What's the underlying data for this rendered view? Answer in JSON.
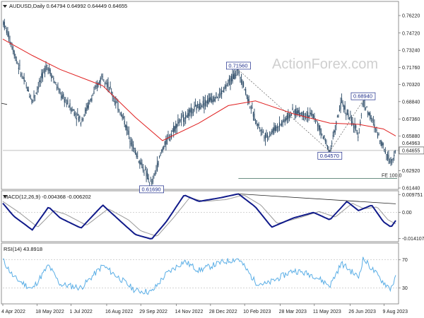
{
  "header": {
    "symbol_line": "AUDUSD,Daily  0.64794 0.64992 0.64449 0.64655"
  },
  "watermark": "ActionForex.com",
  "chart_data": [
    {
      "type": "candlestick",
      "name": "AUDUSD,Daily",
      "open": 0.64794,
      "high": 0.64992,
      "low": 0.64449,
      "close": 0.64655,
      "y_ticks": [
        "0.76220",
        "0.74720",
        "0.73240",
        "0.71760",
        "0.70320",
        "0.68840",
        "0.67360",
        "0.65880",
        "0.64655",
        "0.62920",
        "0.61440"
      ],
      "ylim": [
        0.6144,
        0.7622
      ],
      "price_path": [
        [
          "2022-04-04",
          0.758
        ],
        [
          "2022-04-14",
          0.74
        ],
        [
          "2022-04-28",
          0.712
        ],
        [
          "2022-05-12",
          0.689
        ],
        [
          "2022-05-31",
          0.72
        ],
        [
          "2022-06-17",
          0.695
        ],
        [
          "2022-07-14",
          0.672
        ],
        [
          "2022-08-11",
          0.712
        ],
        [
          "2022-09-06",
          0.675
        ],
        [
          "2022-09-22",
          0.645
        ],
        [
          "2022-10-13",
          0.617
        ],
        [
          "2022-10-27",
          0.648
        ],
        [
          "2022-11-15",
          0.67
        ],
        [
          "2022-12-13",
          0.685
        ],
        [
          "2023-01-10",
          0.695
        ],
        [
          "2023-02-02",
          0.7156
        ],
        [
          "2023-02-24",
          0.672
        ],
        [
          "2023-03-10",
          0.658
        ],
        [
          "2023-04-14",
          0.68
        ],
        [
          "2023-05-10",
          0.676
        ],
        [
          "2023-05-31",
          0.646
        ],
        [
          "2023-06-15",
          0.688
        ],
        [
          "2023-07-07",
          0.66
        ],
        [
          "2023-07-13",
          0.6894
        ],
        [
          "2023-08-08",
          0.65
        ],
        [
          "2023-08-17",
          0.637
        ],
        [
          "2023-08-24",
          0.6466
        ]
      ],
      "sma_path": [
        [
          "2022-04-04",
          0.742
        ],
        [
          "2022-05-12",
          0.728
        ],
        [
          "2022-06-17",
          0.716
        ],
        [
          "2022-08-11",
          0.702
        ],
        [
          "2022-09-22",
          0.675
        ],
        [
          "2022-10-27",
          0.655
        ],
        [
          "2022-12-13",
          0.67
        ],
        [
          "2023-01-20",
          0.685
        ],
        [
          "2023-02-24",
          0.689
        ],
        [
          "2023-04-14",
          0.678
        ],
        [
          "2023-05-31",
          0.67
        ],
        [
          "2023-07-07",
          0.669
        ],
        [
          "2023-08-08",
          0.665
        ],
        [
          "2023-08-24",
          0.659
        ]
      ],
      "annotations": [
        {
          "label": "0.71560",
          "date": "2023-02-02",
          "value": 0.7156
        },
        {
          "label": "0.61690",
          "date": "2022-10-13",
          "value": 0.6169
        },
        {
          "label": "0.64570",
          "date": "2023-05-31",
          "value": 0.6457
        },
        {
          "label": "0.68940",
          "date": "2023-07-13",
          "value": 0.6894
        }
      ],
      "fe_label": "FE 100.0",
      "fe_level": 0.6225,
      "current_price_label": "0.64655",
      "current_price": 0.64655,
      "hidden_label": "0.64963",
      "hidden_value": 0.64963
    },
    {
      "type": "line",
      "name": "MACD(12,26,9) -0.004368 -0.006202",
      "y_ticks": [
        "0.009751",
        "0.00",
        "-0.014107"
      ],
      "ylim": [
        -0.0155,
        0.011
      ],
      "series": [
        {
          "name": "macd",
          "values": [
            [
              "2022-04-04",
              0.005
            ],
            [
              "2022-04-18",
              -0.002
            ],
            [
              "2022-05-12",
              -0.0095
            ],
            [
              "2022-06-02",
              0.003
            ],
            [
              "2022-06-17",
              -0.003
            ],
            [
              "2022-07-14",
              -0.0085
            ],
            [
              "2022-08-11",
              0.004
            ],
            [
              "2022-09-06",
              -0.006
            ],
            [
              "2022-09-22",
              -0.012
            ],
            [
              "2022-10-13",
              -0.0145
            ],
            [
              "2022-11-01",
              -0.005
            ],
            [
              "2022-11-24",
              0.0095
            ],
            [
              "2022-12-13",
              0.006
            ],
            [
              "2023-01-10",
              0.008
            ],
            [
              "2023-02-02",
              0.0101
            ],
            [
              "2023-02-24",
              0.003
            ],
            [
              "2023-03-17",
              -0.008
            ],
            [
              "2023-04-14",
              -0.003
            ],
            [
              "2023-05-10",
              0.0
            ],
            [
              "2023-05-31",
              -0.004
            ],
            [
              "2023-06-22",
              0.006
            ],
            [
              "2023-07-07",
              0.001
            ],
            [
              "2023-07-24",
              0.004
            ],
            [
              "2023-08-08",
              -0.005
            ],
            [
              "2023-08-18",
              -0.008
            ],
            [
              "2023-08-24",
              -0.0044
            ]
          ]
        },
        {
          "name": "signal",
          "values": [
            [
              "2022-04-04",
              0.006
            ],
            [
              "2022-04-25",
              0.0
            ],
            [
              "2022-05-19",
              -0.008
            ],
            [
              "2022-06-09",
              0.001
            ],
            [
              "2022-06-24",
              -0.001
            ],
            [
              "2022-07-21",
              -0.007
            ],
            [
              "2022-08-18",
              0.002
            ],
            [
              "2022-09-13",
              -0.004
            ],
            [
              "2022-09-29",
              -0.01
            ],
            [
              "2022-10-20",
              -0.013
            ],
            [
              "2022-11-10",
              -0.003
            ],
            [
              "2022-12-01",
              0.008
            ],
            [
              "2022-12-20",
              0.006
            ],
            [
              "2023-01-17",
              0.007
            ],
            [
              "2023-02-09",
              0.0095
            ],
            [
              "2023-03-03",
              0.004
            ],
            [
              "2023-03-24",
              -0.006
            ],
            [
              "2023-04-21",
              -0.003
            ],
            [
              "2023-05-17",
              0.0005
            ],
            [
              "2023-06-07",
              -0.0025
            ],
            [
              "2023-06-29",
              0.005
            ],
            [
              "2023-07-14",
              0.002
            ],
            [
              "2023-07-31",
              0.003
            ],
            [
              "2023-08-14",
              -0.004
            ],
            [
              "2023-08-24",
              -0.0062
            ]
          ]
        }
      ],
      "divergence_line": [
        [
          "2023-02-02",
          0.0101
        ],
        [
          "2023-08-24",
          0.0047
        ]
      ]
    },
    {
      "type": "line",
      "name": "RSI(14) 43.8918",
      "y_ticks": [
        "70",
        "30"
      ],
      "ylim": [
        8,
        92
      ],
      "levels": [
        70,
        30
      ],
      "series": [
        {
          "name": "rsi",
          "values": [
            [
              "2022-04-04",
              70
            ],
            [
              "2022-04-18",
              45
            ],
            [
              "2022-05-12",
              28
            ],
            [
              "2022-06-02",
              62
            ],
            [
              "2022-06-17",
              35
            ],
            [
              "2022-07-14",
              30
            ],
            [
              "2022-08-11",
              62
            ],
            [
              "2022-09-06",
              40
            ],
            [
              "2022-09-22",
              26
            ],
            [
              "2022-10-13",
              24
            ],
            [
              "2022-11-01",
              50
            ],
            [
              "2022-11-24",
              68
            ],
            [
              "2022-12-13",
              55
            ],
            [
              "2023-01-10",
              66
            ],
            [
              "2023-02-02",
              72
            ],
            [
              "2023-02-24",
              38
            ],
            [
              "2023-03-10",
              35
            ],
            [
              "2023-04-14",
              55
            ],
            [
              "2023-05-10",
              48
            ],
            [
              "2023-05-31",
              33
            ],
            [
              "2023-06-15",
              65
            ],
            [
              "2023-07-07",
              45
            ],
            [
              "2023-07-13",
              72
            ],
            [
              "2023-08-08",
              38
            ],
            [
              "2023-08-17",
              29
            ],
            [
              "2023-08-24",
              44
            ]
          ]
        }
      ]
    }
  ],
  "x_ticks": [
    "4 Apr 2022",
    "18 May 2022",
    "1 Jul 2022",
    "16 Aug 2022",
    "29 Sep 2022",
    "14 Nov 2022",
    "28 Dec 2022",
    "10 Feb 2023",
    "28 Mar 2023",
    "11 May 2023",
    "26 Jun 2023",
    "9 Aug 2023"
  ],
  "x_tick_dates": [
    "2022-04-04",
    "2022-05-18",
    "2022-07-01",
    "2022-08-16",
    "2022-09-29",
    "2022-11-14",
    "2022-12-28",
    "2023-02-10",
    "2023-03-28",
    "2023-05-11",
    "2023-06-26",
    "2023-08-09"
  ],
  "x_range": [
    "2022-04-04",
    "2023-08-24"
  ],
  "colors": {
    "candle": "#2b4a66",
    "sma": "#e02020",
    "macd": "#101a8a",
    "signal": "#9a9a9a",
    "rsi": "#5aaee6",
    "grid": "#e6e6e6",
    "level": "#666666"
  }
}
